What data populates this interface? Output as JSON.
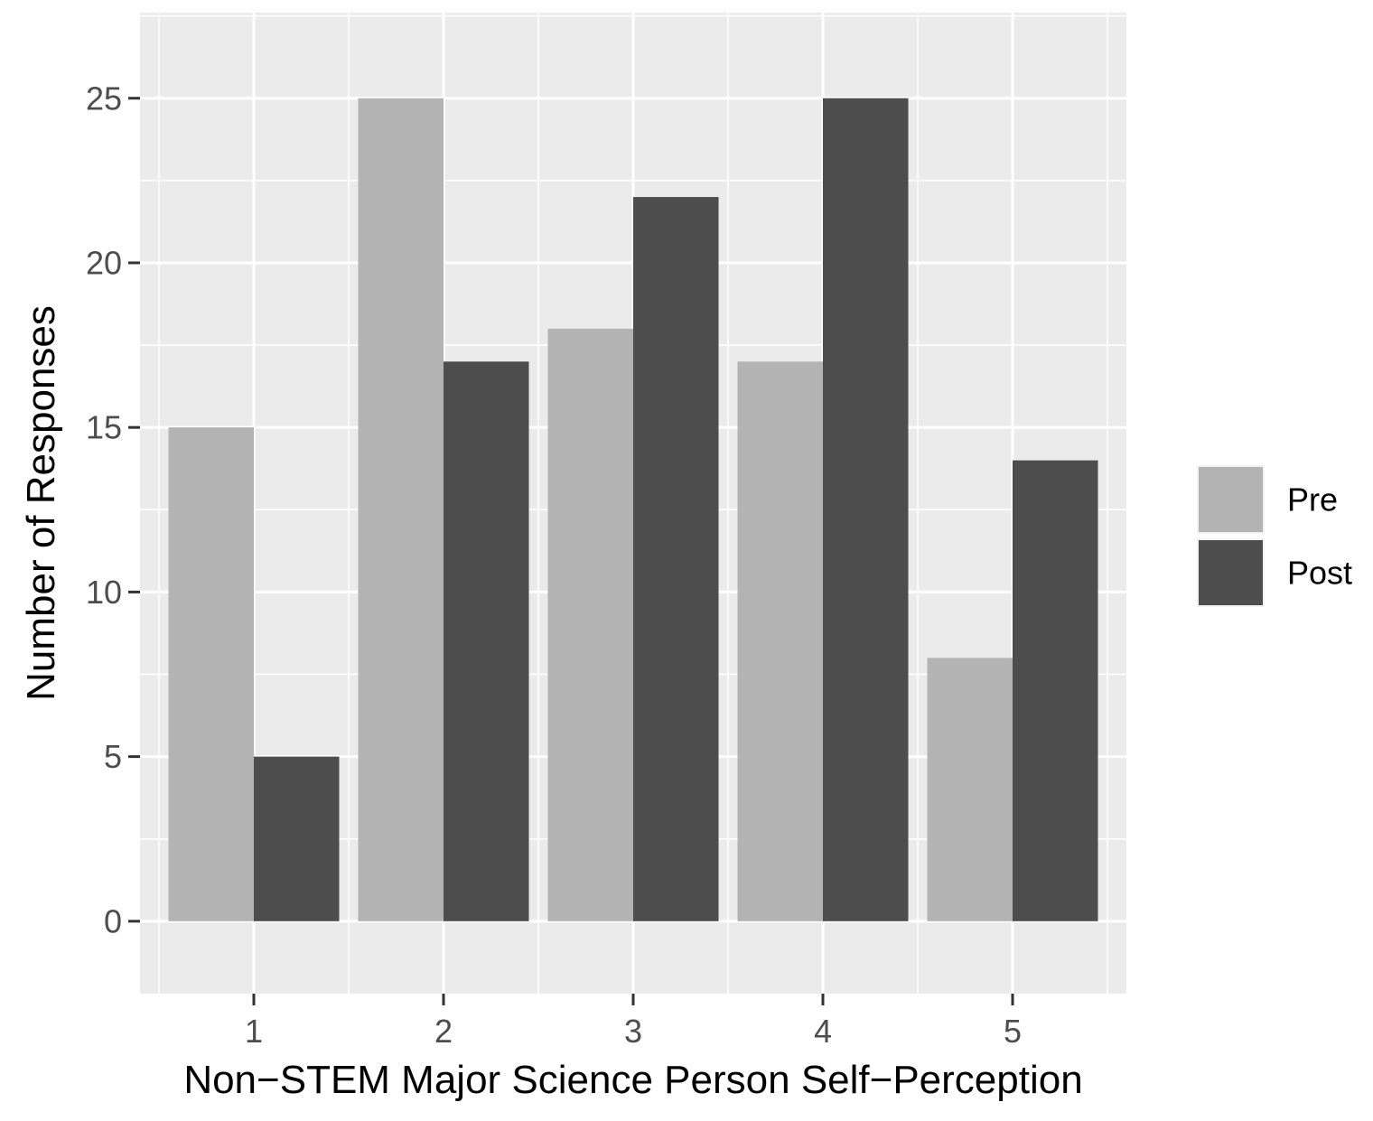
{
  "chart_data": {
    "type": "bar",
    "title": "",
    "xlabel": "Non−STEM Major Science Person Self−Perception",
    "ylabel": "Number of Responses",
    "categories": [
      "1",
      "2",
      "3",
      "4",
      "5"
    ],
    "series": [
      {
        "name": "Pre",
        "color": "#b3b3b3",
        "values": [
          15,
          25,
          18,
          17,
          8
        ]
      },
      {
        "name": "Post",
        "color": "#4d4d4d",
        "values": [
          5,
          17,
          22,
          25,
          14
        ]
      }
    ],
    "ylim": [
      -2.2,
      27.6
    ],
    "yticks": [
      0,
      5,
      10,
      15,
      20,
      25
    ],
    "grid": true,
    "panel_background": "#ebebeb",
    "legend_position": "right"
  }
}
